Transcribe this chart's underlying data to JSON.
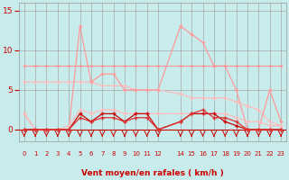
{
  "x": [
    0,
    1,
    2,
    3,
    4,
    5,
    6,
    7,
    8,
    9,
    10,
    11,
    12,
    14,
    15,
    16,
    17,
    18,
    19,
    20,
    21,
    22,
    23
  ],
  "line_spiky_light": [
    2,
    0,
    0,
    0,
    0,
    13,
    6,
    7,
    7,
    5,
    5,
    5,
    5,
    13,
    12,
    11,
    8,
    8,
    5,
    0,
    0,
    5,
    1
  ],
  "line_flat_light": [
    8,
    8,
    8,
    8,
    8,
    8,
    8,
    8,
    8,
    8,
    8,
    8,
    8,
    8,
    8,
    8,
    8,
    8,
    8,
    8,
    8,
    8,
    8
  ],
  "line_diagonal_light": [
    6,
    6,
    6,
    6,
    6,
    6,
    6,
    5.5,
    5.5,
    5.5,
    5,
    5,
    5,
    4.5,
    4,
    4,
    4,
    4,
    3.5,
    3,
    2.5,
    1,
    0.5
  ],
  "line_lower_light": [
    2,
    0,
    0,
    0,
    0.5,
    2.5,
    2,
    2.5,
    2.5,
    2,
    2,
    2,
    2,
    2,
    2,
    2,
    2,
    2,
    1.5,
    1,
    1,
    0.5,
    0.5
  ],
  "line_dark1": [
    0,
    0,
    0,
    0,
    0,
    2,
    1,
    2,
    2,
    1,
    2,
    2,
    0,
    1,
    2,
    2,
    2,
    1,
    0.5,
    0,
    0,
    0,
    0
  ],
  "line_dark2": [
    0,
    0,
    0,
    0,
    0,
    1.5,
    1,
    1.5,
    1.5,
    1,
    1.5,
    1.5,
    0,
    1,
    2,
    2.5,
    1.5,
    1.5,
    1,
    0,
    0,
    0,
    0
  ],
  "background": "#c8ecec",
  "grid_color": "#999999",
  "color_light_pink": "#ff9999",
  "color_medium_pink": "#ffbbbb",
  "color_dark_red": "#cc0000",
  "color_medium_red": "#dd3333",
  "xlabel": "Vent moyen/en rafales ( km/h )",
  "xlabel_color": "#cc0000",
  "tick_color": "#cc0000",
  "ylim": [
    -1.5,
    16
  ],
  "yticks": [
    0,
    5,
    10,
    15
  ]
}
